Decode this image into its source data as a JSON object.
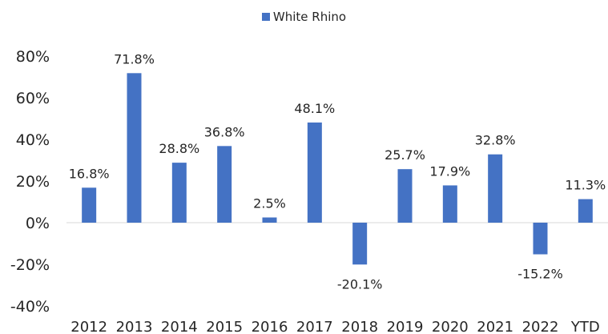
{
  "chart_data": {
    "type": "bar",
    "categories": [
      "2012",
      "2013",
      "2014",
      "2015",
      "2016",
      "2017",
      "2018",
      "2019",
      "2020",
      "2021",
      "2022",
      "YTD"
    ],
    "series": [
      {
        "name": "White Rhino",
        "values": [
          16.8,
          71.8,
          28.8,
          36.8,
          2.5,
          48.1,
          -20.1,
          25.7,
          17.9,
          32.8,
          -15.2,
          11.3
        ],
        "data_labels": [
          "16.8%",
          "71.8%",
          "28.8%",
          "36.8%",
          "2.5%",
          "48.1%",
          "-20.1%",
          "25.7%",
          "17.9%",
          "32.8%",
          "-15.2%",
          "11.3%"
        ],
        "color": "#4472C4"
      }
    ],
    "ylim": [
      -40,
      80
    ],
    "yticks": [
      -40,
      -20,
      0,
      20,
      40,
      60,
      80
    ],
    "ytick_labels": [
      "-40%",
      "-20%",
      "0%",
      "20%",
      "40%",
      "60%",
      "80%"
    ],
    "legend_position": "top-center",
    "grid": false,
    "title": "",
    "xlabel": "",
    "ylabel": ""
  }
}
